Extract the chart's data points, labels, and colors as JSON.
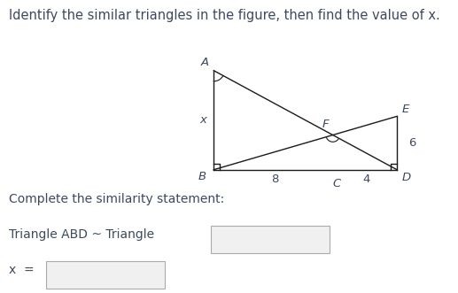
{
  "title": "Identify the similar triangles in the figure, then find the value of x.",
  "title_fontsize": 10.5,
  "text_color": "#3d4a5c",
  "bg_color": "#ffffff",
  "label_A": "A",
  "label_B": "B",
  "label_C": "C",
  "label_D": "D",
  "label_E": "E",
  "label_F": "F",
  "label_x": "x",
  "label_8": "8",
  "label_6": "6",
  "label_4": "4",
  "similarity_text": "Triangle ABD ~ Triangle",
  "x_eq_text": "x  =",
  "complete_text": "Complete the similarity statement:",
  "line_color": "#1a1a1a",
  "lw": 1.0
}
